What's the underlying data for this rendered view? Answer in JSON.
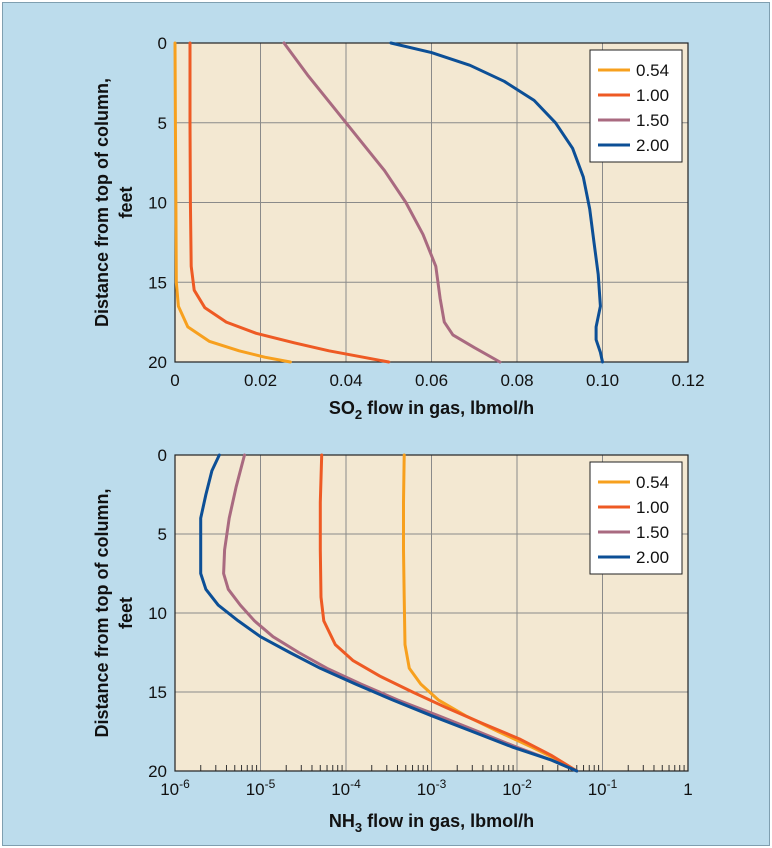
{
  "chart_data": [
    {
      "type": "line",
      "xlabel_main": "SO",
      "xlabel_sub": "2",
      "xlabel_rest": " flow in gas, lbmol/h",
      "ylabel_line1": "Distance from top of column,",
      "ylabel_line2": "feet",
      "x_scale": "linear",
      "xlim": [
        0,
        0.12
      ],
      "ylim": [
        0,
        20
      ],
      "y_inverted": true,
      "x_ticks": [
        {
          "v": 0,
          "label": "0"
        },
        {
          "v": 0.02,
          "label": "0.02"
        },
        {
          "v": 0.04,
          "label": "0.04"
        },
        {
          "v": 0.06,
          "label": "0.06"
        },
        {
          "v": 0.08,
          "label": "0.08"
        },
        {
          "v": 0.1,
          "label": "0.10"
        },
        {
          "v": 0.12,
          "label": "0.12"
        }
      ],
      "y_ticks": [
        {
          "v": 0,
          "label": "0"
        },
        {
          "v": 5,
          "label": "5"
        },
        {
          "v": 10,
          "label": "10"
        },
        {
          "v": 15,
          "label": "15"
        },
        {
          "v": 20,
          "label": "20"
        }
      ],
      "grid": true,
      "legend_position": "top-right",
      "series": [
        {
          "name": "0.54",
          "color": "#f7a01e",
          "points": [
            [
              0,
              0
            ],
            [
              0.0001,
              5
            ],
            [
              0.0002,
              10
            ],
            [
              0.0003,
              15
            ],
            [
              0.0008,
              16.5
            ],
            [
              0.003,
              17.8
            ],
            [
              0.008,
              18.7
            ],
            [
              0.015,
              19.3
            ],
            [
              0.021,
              19.7
            ],
            [
              0.027,
              20
            ]
          ]
        },
        {
          "name": "1.00",
          "color": "#ee5a24",
          "points": [
            [
              0.0035,
              0
            ],
            [
              0.0035,
              5
            ],
            [
              0.0036,
              10
            ],
            [
              0.0038,
              14
            ],
            [
              0.0045,
              15.5
            ],
            [
              0.007,
              16.6
            ],
            [
              0.012,
              17.5
            ],
            [
              0.019,
              18.2
            ],
            [
              0.028,
              18.8
            ],
            [
              0.036,
              19.3
            ],
            [
              0.044,
              19.7
            ],
            [
              0.05,
              20
            ]
          ]
        },
        {
          "name": "1.50",
          "color": "#a96a80",
          "points": [
            [
              0.0255,
              0
            ],
            [
              0.031,
              2
            ],
            [
              0.037,
              4
            ],
            [
              0.043,
              6
            ],
            [
              0.049,
              8
            ],
            [
              0.054,
              10
            ],
            [
              0.058,
              12
            ],
            [
              0.061,
              14
            ],
            [
              0.062,
              16
            ],
            [
              0.063,
              17.5
            ],
            [
              0.065,
              18.3
            ],
            [
              0.07,
              19.1
            ],
            [
              0.076,
              20
            ]
          ]
        },
        {
          "name": "2.00",
          "color": "#0c4f96",
          "points": [
            [
              0.0505,
              0
            ],
            [
              0.06,
              0.6
            ],
            [
              0.069,
              1.4
            ],
            [
              0.077,
              2.4
            ],
            [
              0.084,
              3.6
            ],
            [
              0.089,
              5
            ],
            [
              0.093,
              6.6
            ],
            [
              0.0955,
              8.4
            ],
            [
              0.097,
              10.4
            ],
            [
              0.098,
              12.5
            ],
            [
              0.099,
              14.5
            ],
            [
              0.0995,
              16.5
            ],
            [
              0.0985,
              17.8
            ],
            [
              0.0985,
              18.6
            ],
            [
              0.0995,
              19.4
            ],
            [
              0.1,
              20
            ]
          ]
        }
      ]
    },
    {
      "type": "line",
      "xlabel_main": "NH",
      "xlabel_sub": "3",
      "xlabel_rest": " flow in gas, lbmol/h",
      "ylabel_line1": "Distance from top of column,",
      "ylabel_line2": "feet",
      "x_scale": "log",
      "xlim": [
        1e-06,
        1
      ],
      "ylim": [
        0,
        20
      ],
      "y_inverted": true,
      "x_ticks": [
        {
          "v": 1e-06,
          "base": "10",
          "exp": "-6"
        },
        {
          "v": 1e-05,
          "base": "10",
          "exp": "-5"
        },
        {
          "v": 0.0001,
          "base": "10",
          "exp": "-4"
        },
        {
          "v": 0.001,
          "base": "10",
          "exp": "-3"
        },
        {
          "v": 0.01,
          "base": "10",
          "exp": "-2"
        },
        {
          "v": 0.1,
          "base": "10",
          "exp": "-1"
        },
        {
          "v": 1,
          "base": "1",
          "exp": ""
        }
      ],
      "y_ticks": [
        {
          "v": 0,
          "label": "0"
        },
        {
          "v": 5,
          "label": "5"
        },
        {
          "v": 10,
          "label": "10"
        },
        {
          "v": 15,
          "label": "15"
        },
        {
          "v": 20,
          "label": "20"
        }
      ],
      "grid": true,
      "legend_position": "top-right",
      "series": [
        {
          "name": "0.54",
          "color": "#f7a01e",
          "points": [
            [
              0.00048,
              0
            ],
            [
              0.00047,
              3
            ],
            [
              0.00047,
              6
            ],
            [
              0.00048,
              9
            ],
            [
              0.00049,
              12
            ],
            [
              0.00055,
              13.5
            ],
            [
              0.00075,
              14.5
            ],
            [
              0.0012,
              15.5
            ],
            [
              0.0025,
              16.5
            ],
            [
              0.006,
              17.5
            ],
            [
              0.015,
              18.5
            ],
            [
              0.03,
              19.3
            ],
            [
              0.05,
              20
            ]
          ]
        },
        {
          "name": "1.00",
          "color": "#ee5a24",
          "points": [
            [
              5.2e-05,
              0
            ],
            [
              5e-05,
              3
            ],
            [
              5e-05,
              6
            ],
            [
              5.1e-05,
              9
            ],
            [
              5.5e-05,
              10.5
            ],
            [
              7.5e-05,
              12
            ],
            [
              0.00012,
              13
            ],
            [
              0.00025,
              14
            ],
            [
              0.0006,
              15
            ],
            [
              0.0015,
              16
            ],
            [
              0.004,
              17
            ],
            [
              0.011,
              18
            ],
            [
              0.025,
              19
            ],
            [
              0.05,
              20
            ]
          ]
        },
        {
          "name": "1.50",
          "color": "#a96a80",
          "points": [
            [
              6.5e-06,
              0
            ],
            [
              5.2e-06,
              2
            ],
            [
              4.3e-06,
              4
            ],
            [
              3.8e-06,
              6
            ],
            [
              3.7e-06,
              7.5
            ],
            [
              4.2e-06,
              8.5
            ],
            [
              5.8e-06,
              9.5
            ],
            [
              8.5e-06,
              10.5
            ],
            [
              1.4e-05,
              11.5
            ],
            [
              2.8e-05,
              12.5
            ],
            [
              6e-05,
              13.5
            ],
            [
              0.00015,
              14.5
            ],
            [
              0.0004,
              15.5
            ],
            [
              0.0012,
              16.5
            ],
            [
              0.0035,
              17.5
            ],
            [
              0.01,
              18.5
            ],
            [
              0.025,
              19.3
            ],
            [
              0.05,
              20
            ]
          ]
        },
        {
          "name": "2.00",
          "color": "#0c4f96",
          "points": [
            [
              3.3e-06,
              0
            ],
            [
              2.7e-06,
              1
            ],
            [
              2.3e-06,
              2.5
            ],
            [
              2e-06,
              4
            ],
            [
              2e-06,
              6
            ],
            [
              2e-06,
              7.5
            ],
            [
              2.3e-06,
              8.5
            ],
            [
              3.2e-06,
              9.5
            ],
            [
              5.5e-06,
              10.5
            ],
            [
              1e-05,
              11.5
            ],
            [
              2.2e-05,
              12.5
            ],
            [
              5e-05,
              13.5
            ],
            [
              0.00013,
              14.5
            ],
            [
              0.00035,
              15.5
            ],
            [
              0.001,
              16.5
            ],
            [
              0.003,
              17.5
            ],
            [
              0.009,
              18.5
            ],
            [
              0.025,
              19.3
            ],
            [
              0.05,
              20
            ]
          ]
        }
      ]
    }
  ]
}
